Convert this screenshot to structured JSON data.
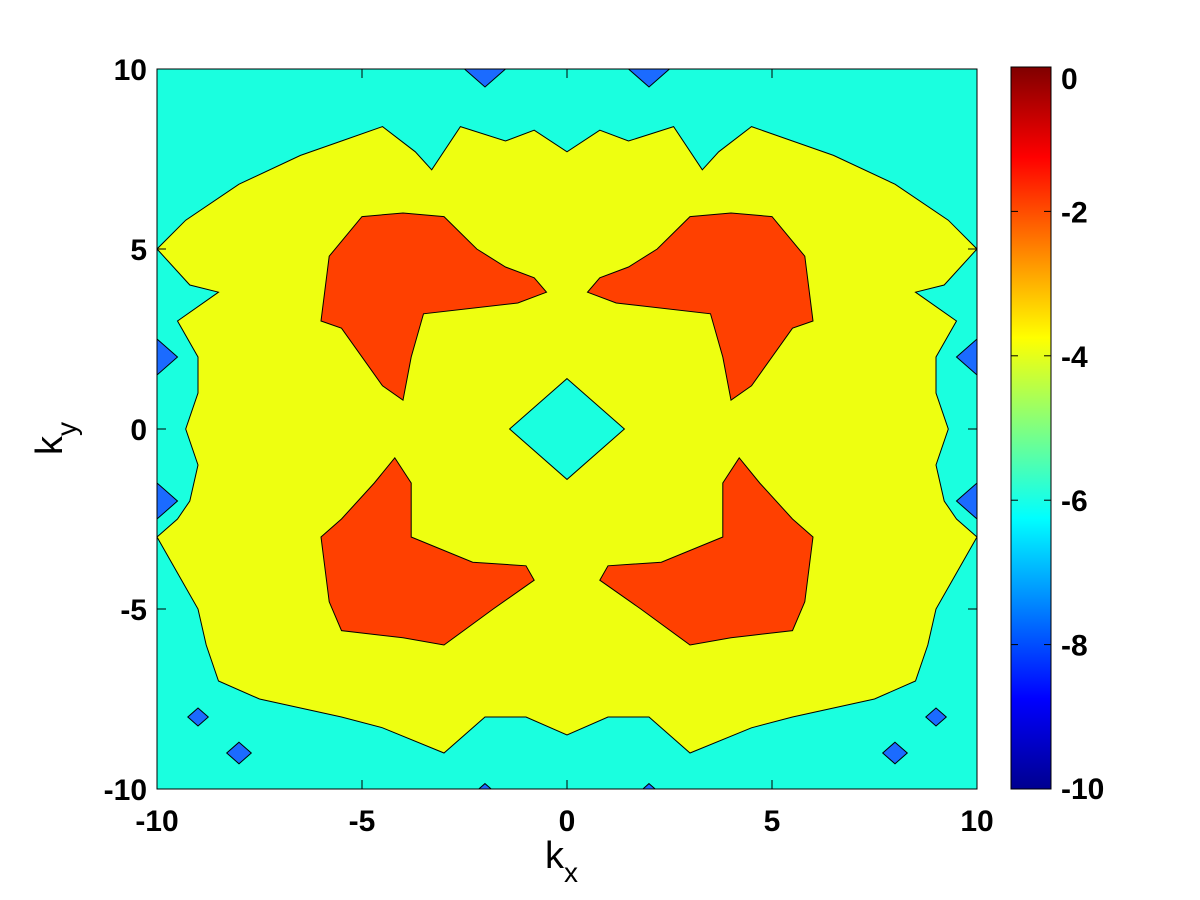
{
  "chart_data": {
    "type": "heatmap",
    "subtype": "filled-contour",
    "xlabel": "k",
    "xlabel_sub": "x",
    "ylabel": "k",
    "ylabel_sub": "y",
    "xlim": [
      -10,
      10
    ],
    "ylim": [
      -10,
      10
    ],
    "xticks": [
      "-10",
      "-5",
      "0",
      "5",
      "10"
    ],
    "yticks": [
      "-10",
      "-5",
      "0",
      "5",
      "10"
    ],
    "grid": false,
    "colorbar": {
      "range": [
        -10,
        0
      ],
      "colormap": "jet",
      "ticks": [
        "-10",
        "-8",
        "-6",
        "-4",
        "-2",
        "0"
      ],
      "stops": [
        "#00008f",
        "#0000ff",
        "#0080ff",
        "#00ffff",
        "#80ff80",
        "#ffff00",
        "#ff8000",
        "#ff0000",
        "#800000"
      ]
    },
    "levels": [
      {
        "name": "background",
        "level": -6,
        "color": "#1affdf"
      },
      {
        "name": "ring",
        "level": -4,
        "color": "#eeff10"
      },
      {
        "name": "lobes",
        "level": -2,
        "color": "#ff4000"
      },
      {
        "name": "spots",
        "level": -8,
        "color": "#1b6bff"
      }
    ],
    "regions": {
      "ring_outer": [
        [
          -10,
          -3
        ],
        [
          -9.5,
          -2.5
        ],
        [
          -9.2,
          -2
        ],
        [
          -9,
          -1
        ],
        [
          -9.3,
          0
        ],
        [
          -9,
          1
        ],
        [
          -9,
          2
        ],
        [
          -9.5,
          3
        ],
        [
          -8.5,
          3.8
        ],
        [
          -9.2,
          4
        ],
        [
          -10,
          5
        ],
        [
          -9.3,
          5.8
        ],
        [
          -8,
          6.8
        ],
        [
          -6.5,
          7.6
        ],
        [
          -5.5,
          8
        ],
        [
          -4.5,
          8.4
        ],
        [
          -3.7,
          7.7
        ],
        [
          -3.3,
          7.2
        ],
        [
          -2.6,
          8.4
        ],
        [
          -1.5,
          8
        ],
        [
          -0.8,
          8.3
        ],
        [
          0,
          7.7
        ],
        [
          0.8,
          8.3
        ],
        [
          1.5,
          8
        ],
        [
          2.6,
          8.4
        ],
        [
          3.3,
          7.2
        ],
        [
          3.7,
          7.7
        ],
        [
          4.5,
          8.4
        ],
        [
          5.5,
          8
        ],
        [
          6.5,
          7.6
        ],
        [
          8,
          6.8
        ],
        [
          9.3,
          5.8
        ],
        [
          10,
          5
        ],
        [
          9.2,
          4
        ],
        [
          8.5,
          3.8
        ],
        [
          9.5,
          3
        ],
        [
          9,
          2
        ],
        [
          9,
          1
        ],
        [
          9.3,
          0
        ],
        [
          9,
          -1
        ],
        [
          9.2,
          -2
        ],
        [
          9.5,
          -2.5
        ],
        [
          10,
          -3
        ],
        [
          9.5,
          -4
        ],
        [
          9,
          -5
        ],
        [
          8.8,
          -6
        ],
        [
          8.5,
          -7
        ],
        [
          7.5,
          -7.5
        ],
        [
          5.5,
          -8
        ],
        [
          4.5,
          -8.3
        ],
        [
          3,
          -9
        ],
        [
          2,
          -8
        ],
        [
          1,
          -8
        ],
        [
          0,
          -8.5
        ],
        [
          -1,
          -8
        ],
        [
          -2,
          -8
        ],
        [
          -3,
          -9
        ],
        [
          -4.5,
          -8.3
        ],
        [
          -5.5,
          -8
        ],
        [
          -7.5,
          -7.5
        ],
        [
          -8.5,
          -7
        ],
        [
          -8.8,
          -6
        ],
        [
          -9,
          -5
        ],
        [
          -9.5,
          -4
        ]
      ],
      "center_hole": [
        [
          0,
          1.4
        ],
        [
          1.4,
          0
        ],
        [
          0,
          -1.4
        ],
        [
          -1.4,
          0
        ]
      ],
      "lobe_upper_left": [
        [
          -5.8,
          4.8
        ],
        [
          -5,
          5.9
        ],
        [
          -4,
          6
        ],
        [
          -3,
          5.9
        ],
        [
          -2.2,
          5
        ],
        [
          -1.5,
          4.5
        ],
        [
          -0.8,
          4.2
        ],
        [
          -0.5,
          3.8
        ],
        [
          -1.2,
          3.5
        ],
        [
          -3.5,
          3.2
        ],
        [
          -3.8,
          2
        ],
        [
          -4,
          0.8
        ],
        [
          -4.5,
          1.2
        ],
        [
          -5.5,
          2.8
        ],
        [
          -6,
          3
        ]
      ],
      "lobe_lower_left": [
        [
          -6,
          -3
        ],
        [
          -5.5,
          -2.5
        ],
        [
          -4.7,
          -1.5
        ],
        [
          -4.2,
          -0.8
        ],
        [
          -3.8,
          -1.5
        ],
        [
          -3.8,
          -3
        ],
        [
          -2.3,
          -3.7
        ],
        [
          -1,
          -3.8
        ],
        [
          -0.8,
          -4.2
        ],
        [
          -1.8,
          -5
        ],
        [
          -3,
          -6
        ],
        [
          -4,
          -5.8
        ],
        [
          -5.5,
          -5.6
        ],
        [
          -5.8,
          -4.8
        ]
      ],
      "spots": [
        [
          -2,
          10,
          0.5
        ],
        [
          2,
          10,
          0.5
        ],
        [
          -10,
          2,
          0.5
        ],
        [
          -10,
          -2,
          0.5
        ],
        [
          10,
          2,
          0.5
        ],
        [
          10,
          -2,
          0.5
        ],
        [
          -8,
          -9,
          0.3
        ],
        [
          -9,
          -8,
          0.25
        ],
        [
          8,
          -9,
          0.3
        ],
        [
          9,
          -8,
          0.25
        ],
        [
          -2,
          -10,
          0.15
        ],
        [
          2,
          -10,
          0.15
        ]
      ]
    }
  }
}
